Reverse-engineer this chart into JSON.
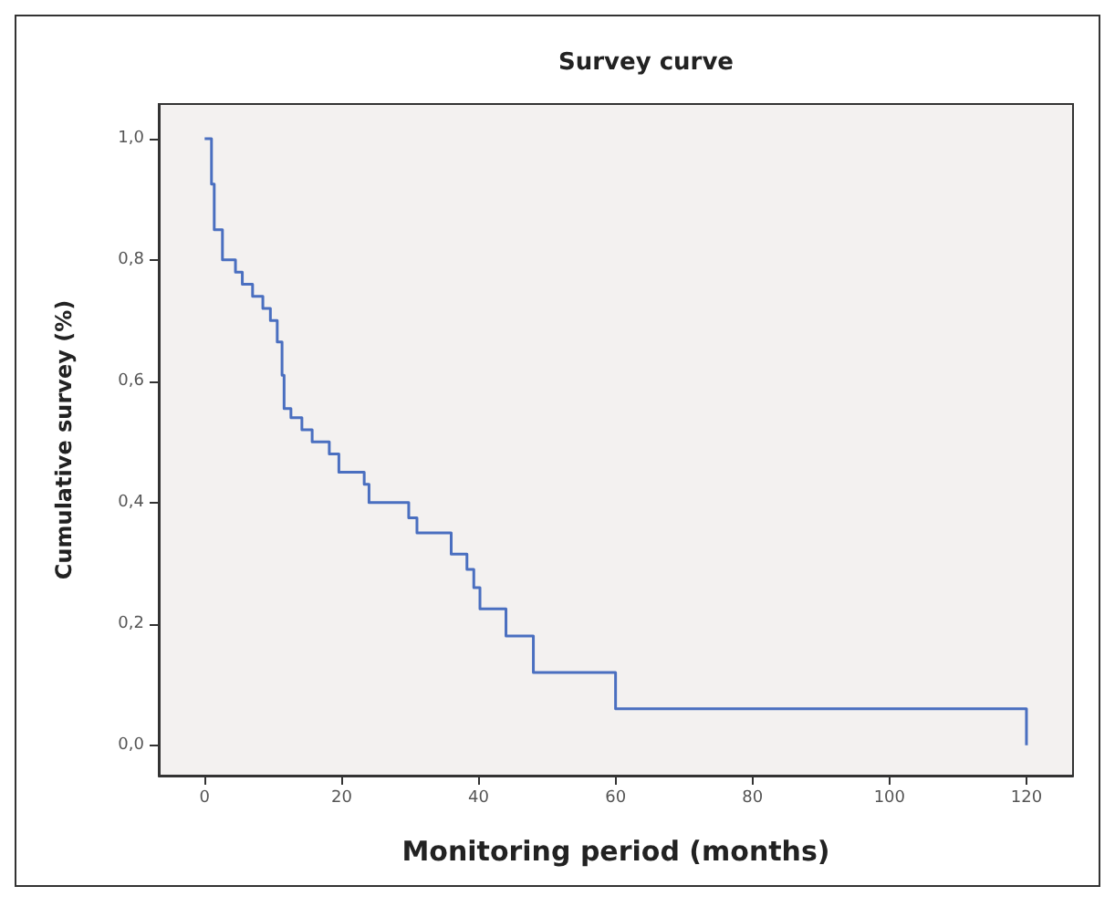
{
  "chart_data": {
    "type": "step",
    "title": "Survey curve",
    "xlabel": "Monitoring period (months)",
    "ylabel": "Cumulative survey (%)",
    "x": [
      0,
      1,
      1.4,
      2.6,
      4.5,
      5.5,
      7,
      8.5,
      9.6,
      10.6,
      11.3,
      11.6,
      12.6,
      14.2,
      15.7,
      18.2,
      19.6,
      23.3,
      24,
      29.8,
      31,
      36,
      38.3,
      39.3,
      40.2,
      44,
      48,
      60,
      120
    ],
    "series": [
      {
        "color": "#4a6fc0",
        "values": [
          1.0,
          0.925,
          0.85,
          0.8,
          0.78,
          0.76,
          0.74,
          0.72,
          0.7,
          0.665,
          0.61,
          0.555,
          0.54,
          0.52,
          0.5,
          0.48,
          0.45,
          0.43,
          0.4,
          0.375,
          0.35,
          0.315,
          0.29,
          0.26,
          0.225,
          0.18,
          0.12,
          0.06,
          0.0
        ]
      }
    ],
    "xlim": [
      -6.7,
      126.8
    ],
    "xticks": [
      0,
      20,
      40,
      60,
      80,
      100,
      120
    ],
    "ylim": [
      -0.05,
      1.057
    ],
    "yticks": [
      {
        "value": 0,
        "label": "0,0"
      },
      {
        "value": 0.2,
        "label": "0,2"
      },
      {
        "value": 0.4,
        "label": "0,4"
      },
      {
        "value": 0.6,
        "label": "0,6"
      },
      {
        "value": 0.8,
        "label": "0,8"
      },
      {
        "value": 1.0,
        "label": "1,0"
      }
    ],
    "grid": false,
    "marker": "none",
    "line_style": "solid"
  }
}
